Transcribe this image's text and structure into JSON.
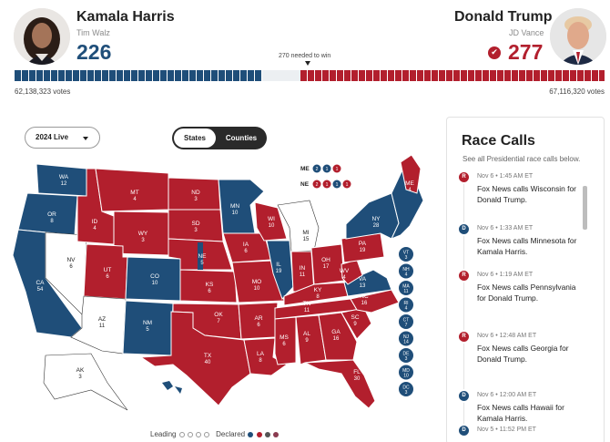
{
  "left_candidate": {
    "name": "Kamala Harris",
    "running_mate": "Tim Walz",
    "electoral_votes": "226",
    "popular_votes": "62,138,323 votes",
    "color": "#1f4e79"
  },
  "right_candidate": {
    "name": "Donald Trump",
    "running_mate": "JD Vance",
    "electoral_votes": "277",
    "popular_votes": "67,116,320 votes",
    "winner_check": "✔",
    "color": "#b21f2d"
  },
  "progress": {
    "needed_label": "270 needed to win",
    "total_ev": 538,
    "dem_ev": 226,
    "rep_ev": 277
  },
  "controls": {
    "year_select": "2024 Live",
    "toggle_states": "States",
    "toggle_counties": "Counties",
    "active_toggle": "States"
  },
  "map_labels": {
    "WA": [
      "WA",
      "12"
    ],
    "OR": [
      "OR",
      "8"
    ],
    "CA": [
      "CA",
      "54"
    ],
    "NV": [
      "NV",
      "6"
    ],
    "ID": [
      "ID",
      "4"
    ],
    "MT": [
      "MT",
      "4"
    ],
    "WY": [
      "WY",
      "3"
    ],
    "UT": [
      "UT",
      "6"
    ],
    "AZ": [
      "AZ",
      "11"
    ],
    "CO": [
      "CO",
      "10"
    ],
    "NM": [
      "NM",
      "5"
    ],
    "ND": [
      "ND",
      "3"
    ],
    "SD": [
      "SD",
      "3"
    ],
    "NE": [
      "NE",
      "5"
    ],
    "KS": [
      "KS",
      "6"
    ],
    "OK": [
      "OK",
      "7"
    ],
    "TX": [
      "TX",
      "40"
    ],
    "MN": [
      "MN",
      "10"
    ],
    "IA": [
      "IA",
      "6"
    ],
    "MO": [
      "MO",
      "10"
    ],
    "AR": [
      "AR",
      "6"
    ],
    "LA": [
      "LA",
      "8"
    ],
    "WI": [
      "WI",
      "10"
    ],
    "IL": [
      "IL",
      "19"
    ],
    "MS": [
      "MS",
      "6"
    ],
    "MI": [
      "MI",
      "15"
    ],
    "IN": [
      "IN",
      "11"
    ],
    "KY": [
      "KY",
      "8"
    ],
    "TN": [
      "TN",
      "11"
    ],
    "AL": [
      "AL",
      "9"
    ],
    "GA": [
      "GA",
      "16"
    ],
    "FL": [
      "FL",
      "30"
    ],
    "SC": [
      "SC",
      "9"
    ],
    "NC": [
      "NC",
      "16"
    ],
    "VA": [
      "VA",
      "13"
    ],
    "WV": [
      "WV",
      "4"
    ],
    "OH": [
      "OH",
      "17"
    ],
    "PA": [
      "PA",
      "19"
    ],
    "NY": [
      "NY",
      "28"
    ],
    "ME": [
      "ME",
      "4"
    ],
    "AK": [
      "AK",
      "3"
    ],
    "HI": [
      "HI",
      ""
    ]
  },
  "split_states": {
    "ME": {
      "label": "ME",
      "chips": [
        "2",
        "1",
        "1"
      ]
    },
    "NE": {
      "label": "NE",
      "chips": [
        "2",
        "1",
        "1",
        "1"
      ]
    }
  },
  "small_states": [
    {
      "abbr": "VT",
      "ev": "3"
    },
    {
      "abbr": "NH",
      "ev": "4"
    },
    {
      "abbr": "MA",
      "ev": "11"
    },
    {
      "abbr": "RI",
      "ev": "4"
    },
    {
      "abbr": "CT",
      "ev": "7"
    },
    {
      "abbr": "NJ",
      "ev": "14"
    },
    {
      "abbr": "DE",
      "ev": "3"
    },
    {
      "abbr": "MD",
      "ev": "10"
    },
    {
      "abbr": "DC",
      "ev": "3"
    }
  ],
  "race_calls": {
    "title": "Race Calls",
    "subtitle": "See all Presidential race calls below.",
    "items": [
      {
        "party": "R",
        "time": "Nov 6 • 1:45 AM ET",
        "text": "Fox News calls Wisconsin for Donald Trump."
      },
      {
        "party": "D",
        "time": "Nov 6 • 1:33 AM ET",
        "text": "Fox News calls Minnesota for Kamala Harris."
      },
      {
        "party": "R",
        "time": "Nov 6 • 1:19 AM ET",
        "text": "Fox News calls Pennsylvania for Donald Trump."
      },
      {
        "party": "R",
        "time": "Nov 6 • 12:48 AM ET",
        "text": "Fox News calls Georgia for Donald Trump."
      },
      {
        "party": "D",
        "time": "Nov 6 • 12:00 AM ET",
        "text": "Fox News calls Hawaii for Kamala Harris."
      },
      {
        "party": "D",
        "time": "Nov 5 • 11:52 PM ET",
        "text": ""
      }
    ]
  },
  "legend": {
    "leading": "Leading",
    "declared": "Declared"
  }
}
